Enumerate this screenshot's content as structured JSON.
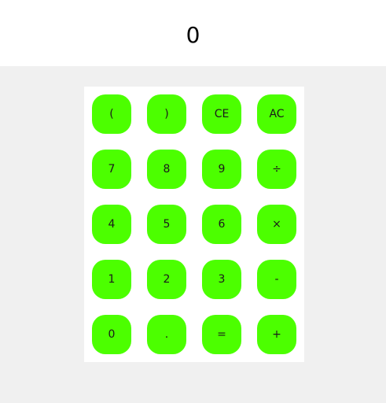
{
  "display": {
    "value": "0"
  },
  "colors": {
    "key_background": "#4cff00",
    "display_background": "#ffffff",
    "page_background": "#f0f0f0"
  },
  "keys": {
    "open_paren": "(",
    "close_paren": ")",
    "clear_entry": "CE",
    "all_clear": "AC",
    "seven": "7",
    "eight": "8",
    "nine": "9",
    "divide": "÷",
    "four": "4",
    "five": "5",
    "six": "6",
    "multiply": "×",
    "one": "1",
    "two": "2",
    "three": "3",
    "subtract": "-",
    "zero": "0",
    "decimal": ".",
    "equals": "=",
    "add": "+"
  }
}
